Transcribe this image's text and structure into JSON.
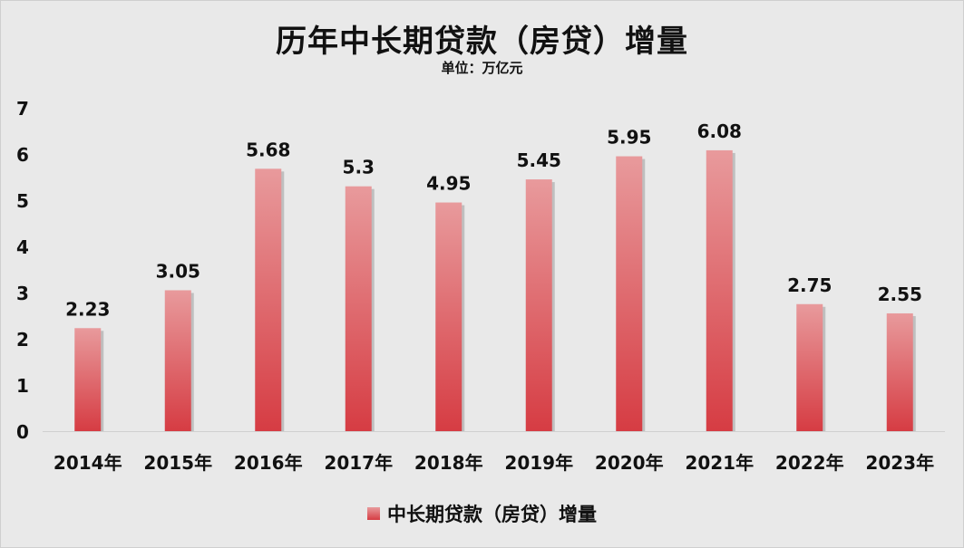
{
  "chart_data": {
    "type": "bar",
    "title": "历年中长期贷款（房贷）增量",
    "subtitle": "单位：万亿元",
    "categories": [
      "2014年",
      "2015年",
      "2016年",
      "2017年",
      "2018年",
      "2019年",
      "2020年",
      "2021年",
      "2022年",
      "2023年"
    ],
    "series": [
      {
        "name": "中长期贷款（房贷）增量",
        "values": [
          2.23,
          3.05,
          5.68,
          5.3,
          4.95,
          5.45,
          5.95,
          6.08,
          2.75,
          2.55
        ],
        "labels": [
          "2.23",
          "3.05",
          "5.68",
          "5.3",
          "4.95",
          "5.45",
          "5.95",
          "6.08",
          "2.75",
          "2.55"
        ]
      }
    ],
    "ylim": [
      0,
      7
    ],
    "yticks": [
      0,
      1,
      2,
      3,
      4,
      5,
      6,
      7
    ],
    "grid": false,
    "legend": "bottom",
    "colors": {
      "bar_top": "#e89a9c",
      "bar_bottom": "#d63c43",
      "background": "#e9e9e9"
    }
  }
}
